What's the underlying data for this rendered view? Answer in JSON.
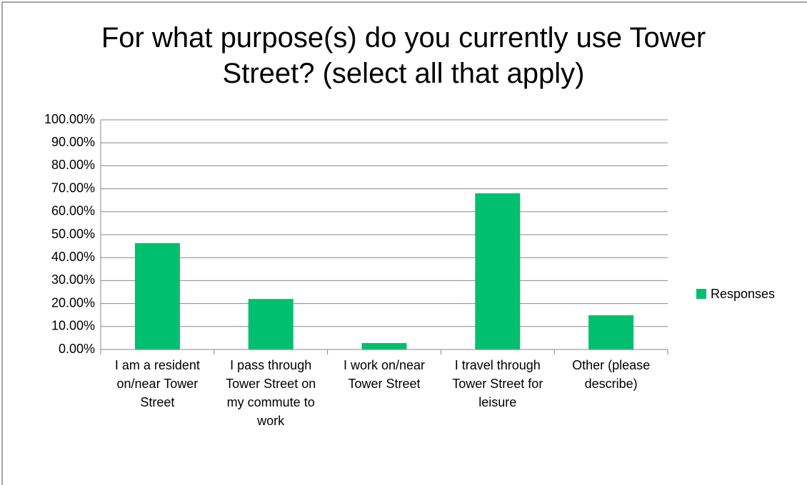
{
  "chart_data": {
    "type": "bar",
    "title": "For what purpose(s) do you currently use Tower Street? (select all that apply)",
    "categories": [
      "I am a resident on/near Tower Street",
      "I pass through Tower Street on my commute to work",
      "I work on/near Tower Street",
      "I travel through Tower Street for leisure",
      "Other (please describe)"
    ],
    "series": [
      {
        "name": "Responses",
        "color": "#00bf6f",
        "values": [
          46.3,
          22.0,
          2.8,
          68.0,
          14.9
        ]
      }
    ],
    "ylim": [
      0,
      100
    ],
    "yticks": [
      {
        "value": 0,
        "label": "0.00%"
      },
      {
        "value": 10,
        "label": "10.00%"
      },
      {
        "value": 20,
        "label": "20.00%"
      },
      {
        "value": 30,
        "label": "30.00%"
      },
      {
        "value": 40,
        "label": "40.00%"
      },
      {
        "value": 50,
        "label": "50.00%"
      },
      {
        "value": 60,
        "label": "60.00%"
      },
      {
        "value": 70,
        "label": "70.00%"
      },
      {
        "value": 80,
        "label": "80.00%"
      },
      {
        "value": 90,
        "label": "90.00%"
      },
      {
        "value": 100,
        "label": "100.00%"
      }
    ],
    "grid": true,
    "legend": "right"
  }
}
